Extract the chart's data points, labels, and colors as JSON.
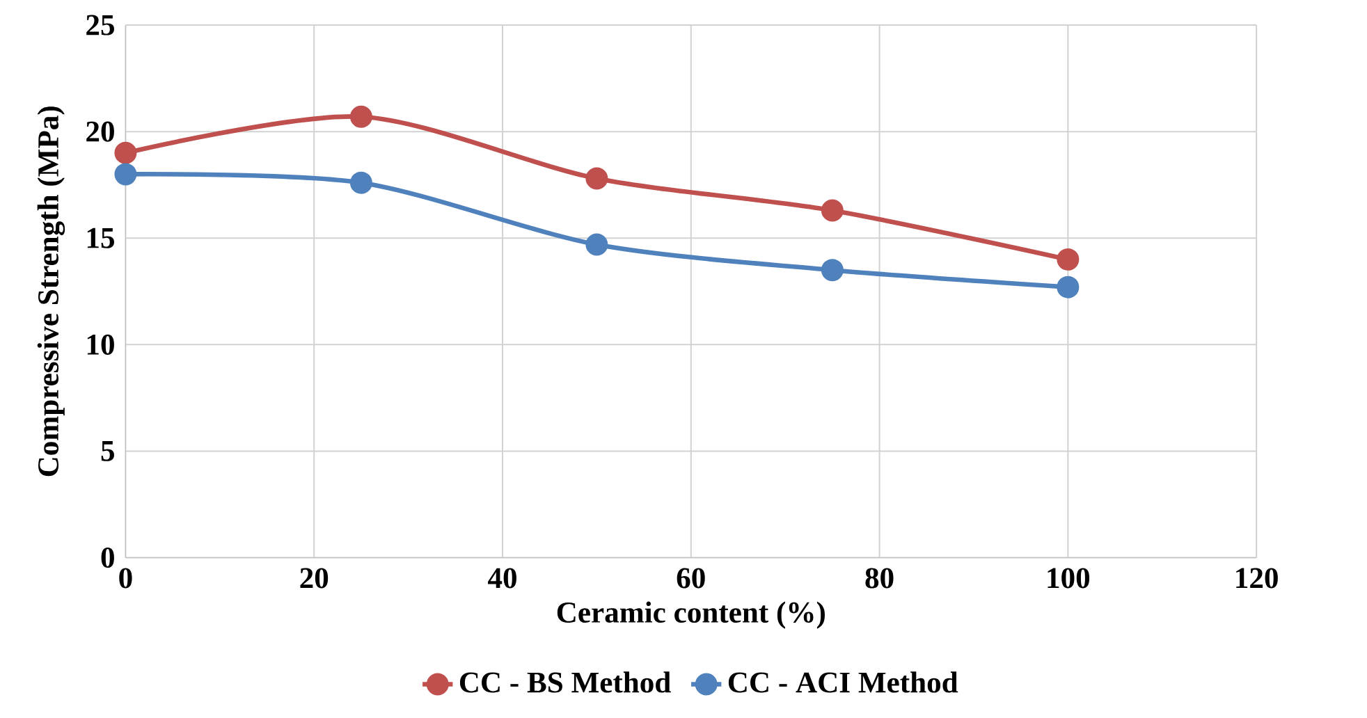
{
  "chart_data": {
    "type": "line",
    "xlabel": "Ceramic content (%)",
    "ylabel": "Compressive Strength (MPa)",
    "x": [
      0,
      25,
      50,
      75,
      100
    ],
    "series": [
      {
        "name": "CC - BS Method",
        "color": "#c0504d",
        "values": [
          19.0,
          20.7,
          17.8,
          16.3,
          14.0
        ]
      },
      {
        "name": "CC - ACI Method",
        "color": "#4f81bd",
        "values": [
          18.0,
          17.6,
          14.7,
          13.5,
          12.7
        ]
      }
    ],
    "xlim": [
      0,
      120
    ],
    "xticks": [
      0,
      20,
      40,
      60,
      80,
      100,
      120
    ],
    "ylim": [
      0,
      25
    ],
    "yticks": [
      0,
      5,
      10,
      15,
      20,
      25
    ],
    "grid": true,
    "legend": "bottom",
    "marker": "circle",
    "line_style": "solid"
  }
}
